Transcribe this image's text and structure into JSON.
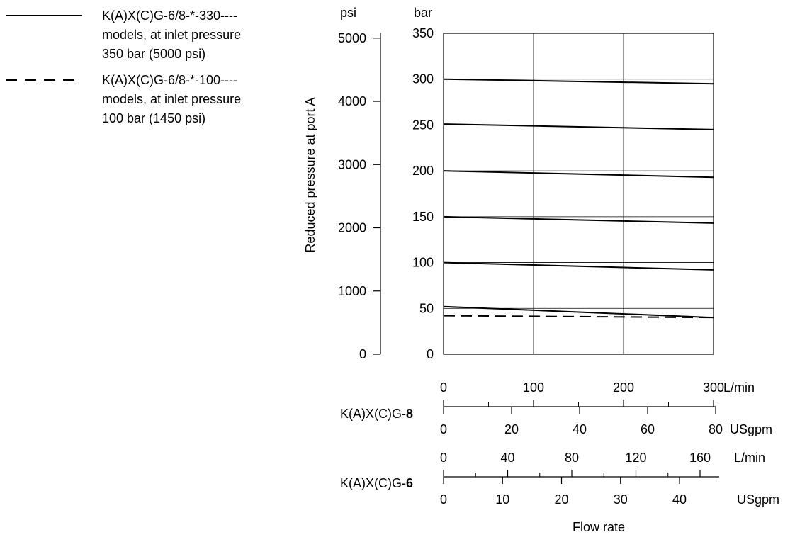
{
  "chart_data": {
    "type": "line",
    "x_axis_label": "Flow rate",
    "y_axis_label": "Reduced pressure at port A",
    "y_units": {
      "left": "psi",
      "right": "bar"
    },
    "y_bar_ticks": [
      "0",
      "50",
      "100",
      "150",
      "200",
      "250",
      "300",
      "350"
    ],
    "y_bar_range": [
      0,
      350
    ],
    "y_psi_ticks": [
      "0",
      "1000",
      "2000",
      "3000",
      "4000",
      "5000"
    ],
    "y_psi_range": [
      0,
      5076
    ],
    "x_range_lpm": [
      0,
      300
    ],
    "grid": true,
    "legend": [
      {
        "style": "solid",
        "lines": [
          "K(A)X(C)G-6/8-*-330----",
          "models, at inlet pressure",
          "350 bar (5000 psi)"
        ]
      },
      {
        "style": "dashed",
        "lines": [
          "K(A)X(C)G-6/8-*-100----",
          "models, at inlet pressure",
          "100 bar (1450 psi)"
        ]
      }
    ],
    "series": [
      {
        "style": "solid",
        "x": [
          0,
          300
        ],
        "y": [
          300,
          295
        ]
      },
      {
        "style": "solid",
        "x": [
          0,
          300
        ],
        "y": [
          251,
          245
        ]
      },
      {
        "style": "solid",
        "x": [
          0,
          300
        ],
        "y": [
          200,
          193
        ]
      },
      {
        "style": "solid",
        "x": [
          0,
          300
        ],
        "y": [
          150,
          143
        ]
      },
      {
        "style": "solid",
        "x": [
          0,
          300
        ],
        "y": [
          100,
          92
        ]
      },
      {
        "style": "solid",
        "x": [
          0,
          300
        ],
        "y": [
          52,
          40
        ]
      },
      {
        "style": "dashed",
        "x": [
          0,
          300
        ],
        "y": [
          42,
          40
        ]
      }
    ],
    "x_scales": [
      {
        "model_prefix": "K(A)X(C)G-",
        "model_suffix": "8",
        "lpm_ticks": [
          "0",
          "100",
          "200",
          "300"
        ],
        "lpm_unit": "L/min",
        "lpm_max": 300,
        "usgpm_ticks": [
          "0",
          "20",
          "40",
          "60",
          "80"
        ],
        "usgpm_unit": "USgpm",
        "usgpm_max": 80
      },
      {
        "model_prefix": "K(A)X(C)G-",
        "model_suffix": "6",
        "lpm_ticks": [
          "0",
          "40",
          "80",
          "120",
          "160"
        ],
        "lpm_unit": "L/min",
        "lpm_max": 160,
        "usgpm_ticks": [
          "0",
          "10",
          "20",
          "30",
          "40"
        ],
        "usgpm_unit": "USgpm",
        "usgpm_max": 40
      }
    ]
  }
}
